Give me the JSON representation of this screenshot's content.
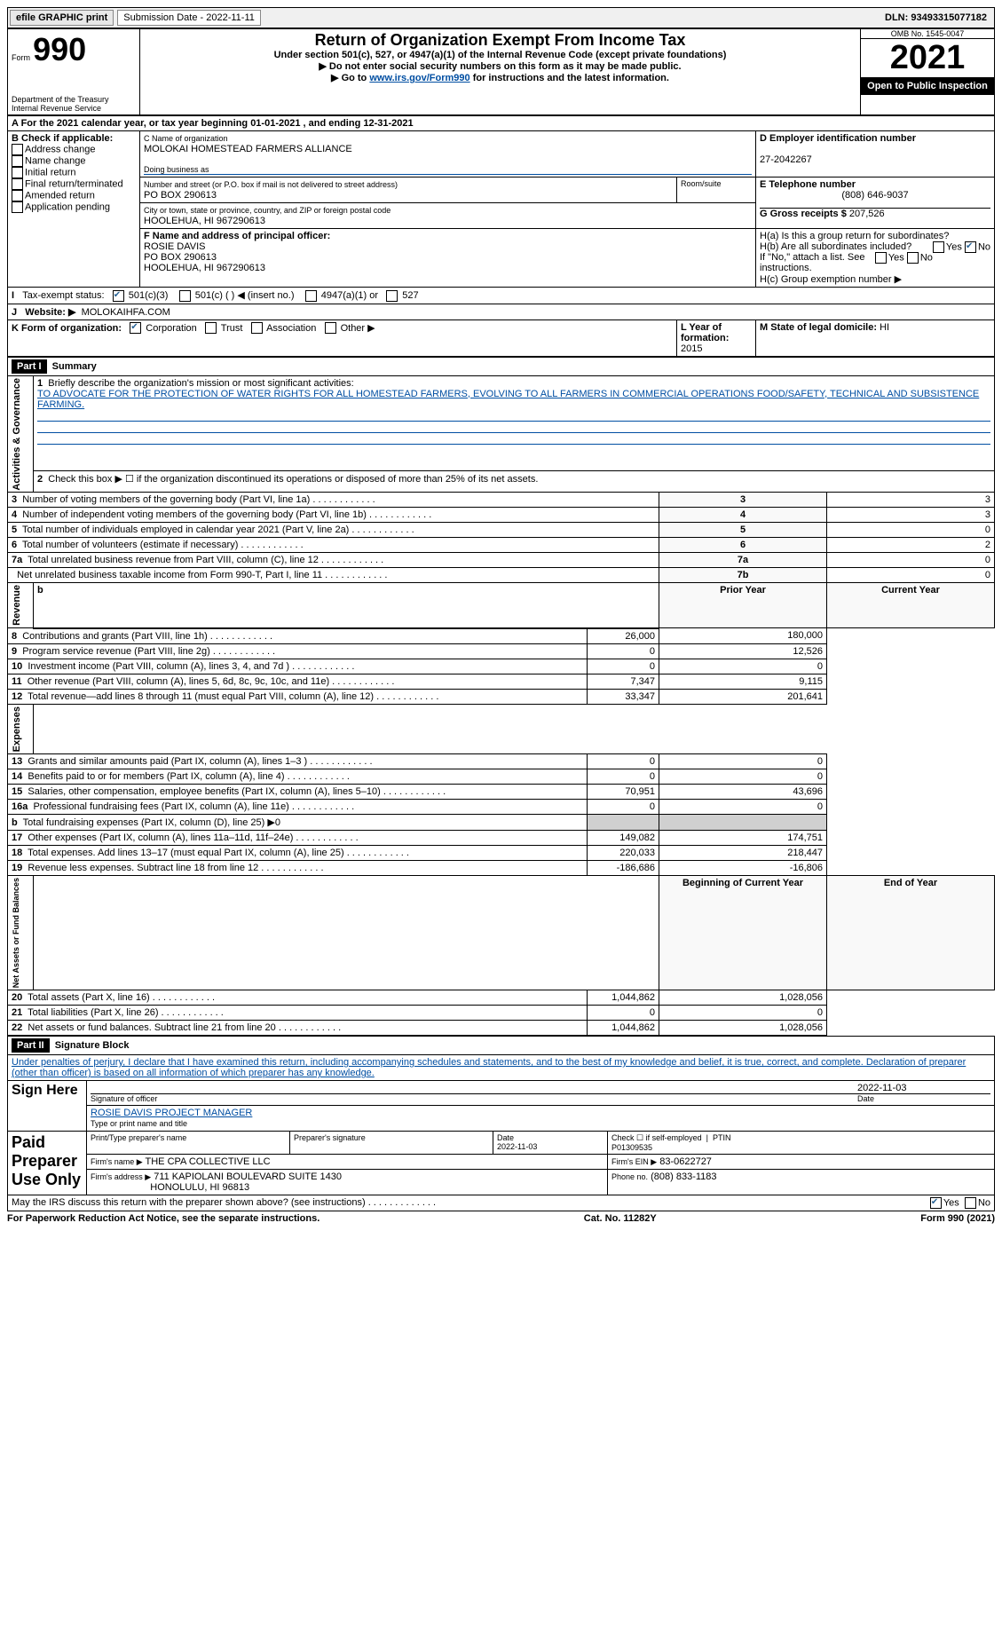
{
  "top": {
    "efile_label": "efile GRAPHIC print",
    "submission_label": "Submission Date - 2022-11-11",
    "dln": "DLN: 93493315077182"
  },
  "header": {
    "form_prefix": "Form",
    "form_number": "990",
    "title": "Return of Organization Exempt From Income Tax",
    "subtitle": "Under section 501(c), 527, or 4947(a)(1) of the Internal Revenue Code (except private foundations)",
    "warn1": "▶ Do not enter social security numbers on this form as it may be made public.",
    "warn2_pre": "▶ Go to ",
    "warn2_link": "www.irs.gov/Form990",
    "warn2_post": " for instructions and the latest information.",
    "dept": "Department of the Treasury\nInternal Revenue Service",
    "omb": "OMB No. 1545-0047",
    "year": "2021",
    "open": "Open to Public Inspection"
  },
  "A": {
    "text": "A For the 2021 calendar year, or tax year beginning 01-01-2021    , and ending 12-31-2021"
  },
  "B": {
    "label": "B Check if applicable:",
    "addr_change": "Address change",
    "name_change": "Name change",
    "initial": "Initial return",
    "final": "Final return/terminated",
    "amended": "Amended return",
    "app_pending": "Application pending"
  },
  "C": {
    "name_lbl": "C Name of organization",
    "name": "MOLOKAI HOMESTEAD FARMERS ALLIANCE",
    "dba_lbl": "Doing business as",
    "street_lbl": "Number and street (or P.O. box if mail is not delivered to street address)",
    "street": "PO BOX 290613",
    "room_lbl": "Room/suite",
    "city_lbl": "City or town, state or province, country, and ZIP or foreign postal code",
    "city": "HOOLEHUA, HI  967290613"
  },
  "D": {
    "lbl": "D Employer identification number",
    "val": "27-2042267"
  },
  "E": {
    "lbl": "E Telephone number",
    "val": "(808) 646-9037"
  },
  "G": {
    "lbl": "G Gross receipts $",
    "val": "207,526"
  },
  "F": {
    "lbl": "F Name and address of principal officer:",
    "name": "ROSIE DAVIS",
    "street": "PO BOX 290613",
    "city": "HOOLEHUA, HI  967290613"
  },
  "H": {
    "a": "H(a)  Is this a group return for subordinates?",
    "b": "H(b)  Are all subordinates included?",
    "b_note": "If \"No,\" attach a list. See instructions.",
    "c": "H(c)  Group exemption number ▶",
    "yes": "Yes",
    "no": "No"
  },
  "I": {
    "lbl": "Tax-exempt status:",
    "c3": "501(c)(3)",
    "c_blank": "501(c) (  ) ◀ (insert no.)",
    "a1": "4947(a)(1) or",
    "s527": "527"
  },
  "J": {
    "lbl": "Website: ▶",
    "val": "MOLOKAIHFA.COM"
  },
  "K": {
    "lbl": "K Form of organization:",
    "corp": "Corporation",
    "trust": "Trust",
    "assoc": "Association",
    "other": "Other ▶"
  },
  "L": {
    "lbl": "L Year of formation:",
    "val": "2015"
  },
  "M": {
    "lbl": "M State of legal domicile:",
    "val": "HI"
  },
  "part1": {
    "hdr": "Part I",
    "title": "Summary",
    "l1_lbl": "Briefly describe the organization's mission or most significant activities:",
    "l1_text": "TO ADVOCATE FOR THE PROTECTION OF WATER RIGHTS FOR ALL HOMESTEAD FARMERS, EVOLVING TO ALL FARMERS IN COMMERCIAL OPERATIONS FOOD/SAFETY, TECHNICAL AND SUBSISTENCE FARMING.",
    "l2": "Check this box ▶ ☐ if the organization discontinued its operations or disposed of more than 25% of its net assets.",
    "sections": {
      "actgov": "Activities & Governance",
      "rev": "Revenue",
      "exp": "Expenses",
      "net": "Net Assets or Fund Balances"
    },
    "col_prior": "Prior Year",
    "col_current": "Current Year",
    "col_begin": "Beginning of Current Year",
    "col_end": "End of Year",
    "rows_gov": [
      {
        "n": "3",
        "t": "Number of voting members of the governing body (Part VI, line 1a)",
        "box": "3",
        "v": "3"
      },
      {
        "n": "4",
        "t": "Number of independent voting members of the governing body (Part VI, line 1b)",
        "box": "4",
        "v": "3"
      },
      {
        "n": "5",
        "t": "Total number of individuals employed in calendar year 2021 (Part V, line 2a)",
        "box": "5",
        "v": "0"
      },
      {
        "n": "6",
        "t": "Total number of volunteers (estimate if necessary)",
        "box": "6",
        "v": "2"
      },
      {
        "n": "7a",
        "t": "Total unrelated business revenue from Part VIII, column (C), line 12",
        "box": "7a",
        "v": "0"
      },
      {
        "n": "",
        "t": "Net unrelated business taxable income from Form 990-T, Part I, line 11",
        "box": "7b",
        "v": "0"
      }
    ],
    "rows_rev": [
      {
        "n": "8",
        "t": "Contributions and grants (Part VIII, line 1h)",
        "p": "26,000",
        "c": "180,000"
      },
      {
        "n": "9",
        "t": "Program service revenue (Part VIII, line 2g)",
        "p": "0",
        "c": "12,526"
      },
      {
        "n": "10",
        "t": "Investment income (Part VIII, column (A), lines 3, 4, and 7d )",
        "p": "0",
        "c": "0"
      },
      {
        "n": "11",
        "t": "Other revenue (Part VIII, column (A), lines 5, 6d, 8c, 9c, 10c, and 11e)",
        "p": "7,347",
        "c": "9,115"
      },
      {
        "n": "12",
        "t": "Total revenue—add lines 8 through 11 (must equal Part VIII, column (A), line 12)",
        "p": "33,347",
        "c": "201,641"
      }
    ],
    "rows_exp": [
      {
        "n": "13",
        "t": "Grants and similar amounts paid (Part IX, column (A), lines 1–3 )",
        "p": "0",
        "c": "0"
      },
      {
        "n": "14",
        "t": "Benefits paid to or for members (Part IX, column (A), line 4)",
        "p": "0",
        "c": "0"
      },
      {
        "n": "15",
        "t": "Salaries, other compensation, employee benefits (Part IX, column (A), lines 5–10)",
        "p": "70,951",
        "c": "43,696"
      },
      {
        "n": "16a",
        "t": "Professional fundraising fees (Part IX, column (A), line 11e)",
        "p": "0",
        "c": "0"
      },
      {
        "n": "b",
        "t": "Total fundraising expenses (Part IX, column (D), line 25) ▶0",
        "p": "",
        "c": "",
        "shade": true
      },
      {
        "n": "17",
        "t": "Other expenses (Part IX, column (A), lines 11a–11d, 11f–24e)",
        "p": "149,082",
        "c": "174,751"
      },
      {
        "n": "18",
        "t": "Total expenses. Add lines 13–17 (must equal Part IX, column (A), line 25)",
        "p": "220,033",
        "c": "218,447"
      },
      {
        "n": "19",
        "t": "Revenue less expenses. Subtract line 18 from line 12",
        "p": "-186,686",
        "c": "-16,806"
      }
    ],
    "rows_net": [
      {
        "n": "20",
        "t": "Total assets (Part X, line 16)",
        "p": "1,044,862",
        "c": "1,028,056"
      },
      {
        "n": "21",
        "t": "Total liabilities (Part X, line 26)",
        "p": "0",
        "c": "0"
      },
      {
        "n": "22",
        "t": "Net assets or fund balances. Subtract line 21 from line 20",
        "p": "1,044,862",
        "c": "1,028,056"
      }
    ]
  },
  "part2": {
    "hdr": "Part II",
    "title": "Signature Block",
    "decl": "Under penalties of perjury, I declare that I have examined this return, including accompanying schedules and statements, and to the best of my knowledge and belief, it is true, correct, and complete. Declaration of preparer (other than officer) is based on all information of which preparer has any knowledge.",
    "sign_here": "Sign Here",
    "sig_officer": "Signature of officer",
    "sig_date": "2022-11-03",
    "officer_name": "ROSIE DAVIS PROJECT MANAGER",
    "type_name": "Type or print name and title",
    "paid_hdr": "Paid Preparer Use Only",
    "prep_name_lbl": "Print/Type preparer's name",
    "prep_sig_lbl": "Preparer's signature",
    "prep_date_lbl": "Date",
    "prep_date": "2022-11-03",
    "check_if": "Check ☐ if self-employed",
    "ptin_lbl": "PTIN",
    "ptin": "P01309535",
    "firm_name_lbl": "Firm's name    ▶",
    "firm_name": "THE CPA COLLECTIVE LLC",
    "firm_ein_lbl": "Firm's EIN ▶",
    "firm_ein": "83-0622727",
    "firm_addr_lbl": "Firm's address ▶",
    "firm_addr1": "711 KAPIOLANI BOULEVARD SUITE 1430",
    "firm_addr2": "HONOLULU, HI  96813",
    "phone_lbl": "Phone no.",
    "phone": "(808) 833-1183",
    "irs_discuss": "May the IRS discuss this return with the preparer shown above? (see instructions)",
    "yes": "Yes",
    "no": "No"
  },
  "footer": {
    "pra": "For Paperwork Reduction Act Notice, see the separate instructions.",
    "cat": "Cat. No. 11282Y",
    "form": "Form 990 (2021)"
  }
}
